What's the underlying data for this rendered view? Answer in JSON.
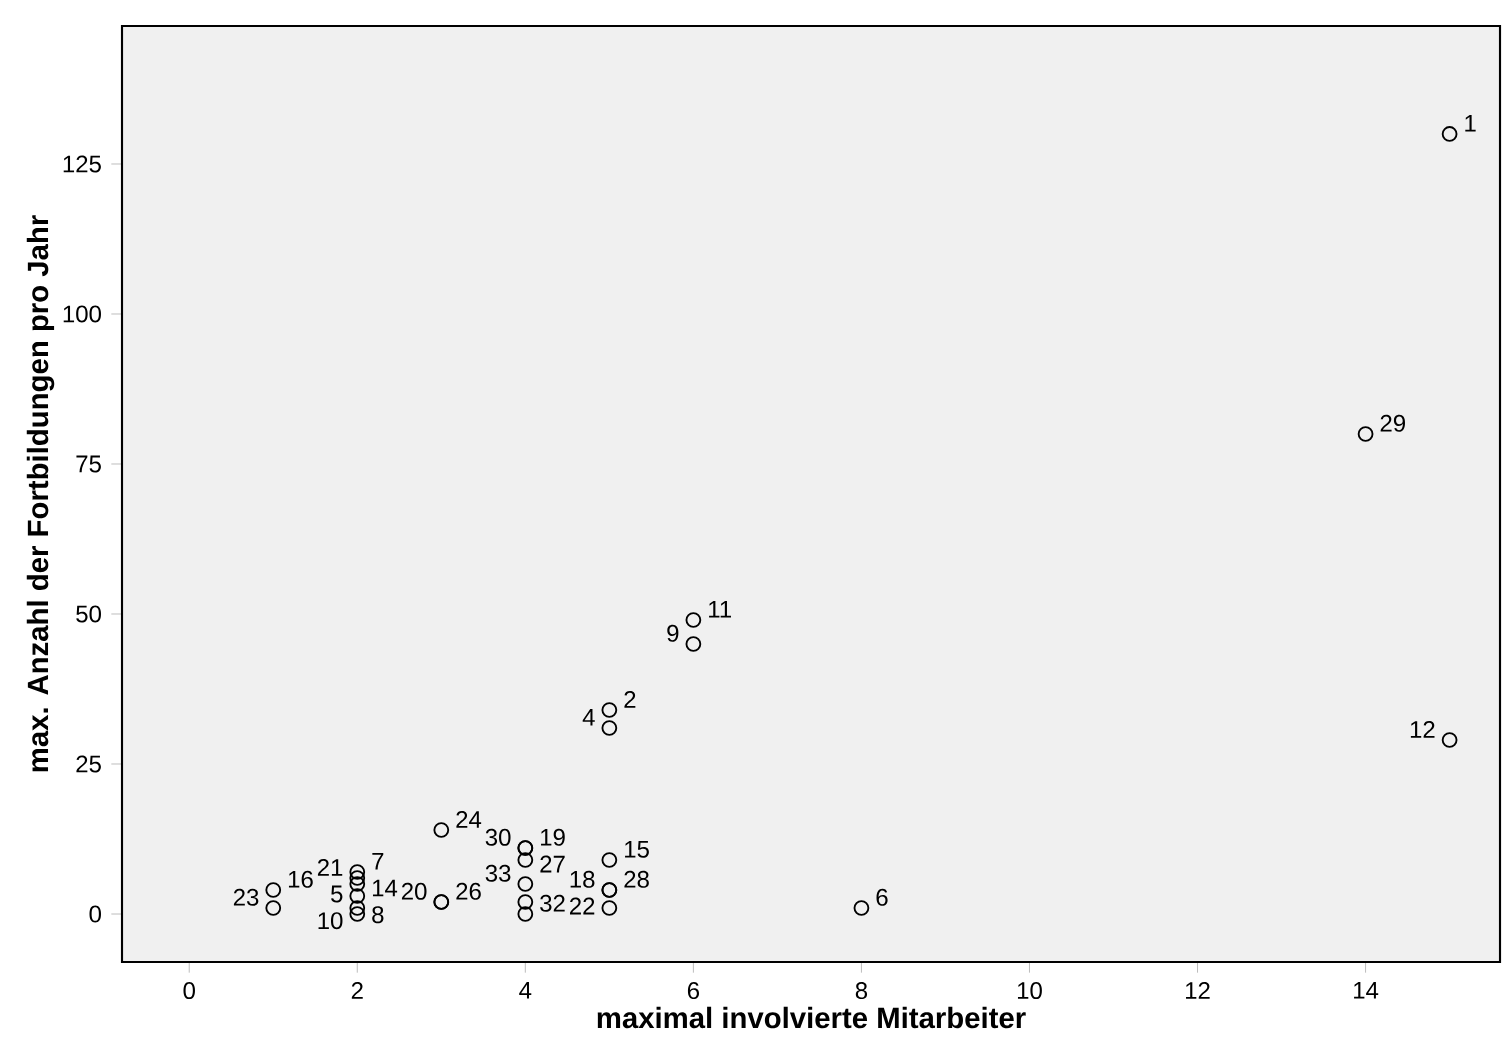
{
  "chart_data": {
    "type": "scatter",
    "xlabel": "maximal involvierte Mitarbeiter",
    "ylabel": "max. Anzahl der Fortbildungen pro Jahr",
    "series": [
      {
        "color": "#000000",
        "x": [
          15,
          5,
          5,
          2,
          8,
          2,
          2,
          6,
          2,
          6,
          15,
          2,
          5,
          1,
          5,
          4,
          3,
          2,
          5,
          1,
          3,
          4,
          4,
          3,
          14,
          4,
          4,
          4,
          5
        ],
        "values": [
          130,
          31,
          34,
          3,
          1,
          7,
          1,
          45,
          0,
          49,
          29,
          5,
          9,
          4,
          4,
          11,
          2,
          6,
          1,
          1,
          14,
          2,
          9,
          2,
          80,
          11,
          0,
          5,
          4
        ]
      }
    ],
    "annotations": [
      {
        "text": "1",
        "x": 15,
        "y": 130
      },
      {
        "text": "2",
        "x": 5,
        "y": 34
      },
      {
        "text": "4",
        "x": 5,
        "y": 31
      },
      {
        "text": "5",
        "x": 2,
        "y": 3
      },
      {
        "text": "6",
        "x": 8,
        "y": 1
      },
      {
        "text": "7",
        "x": 2,
        "y": 7
      },
      {
        "text": "8",
        "x": 2,
        "y": 1
      },
      {
        "text": "9",
        "x": 6,
        "y": 45
      },
      {
        "text": "10",
        "x": 2,
        "y": 0
      },
      {
        "text": "11",
        "x": 6,
        "y": 49
      },
      {
        "text": "12",
        "x": 15,
        "y": 29
      },
      {
        "text": "14",
        "x": 2,
        "y": 5
      },
      {
        "text": "15",
        "x": 5,
        "y": 9
      },
      {
        "text": "16",
        "x": 1,
        "y": 4
      },
      {
        "text": "18",
        "x": 5,
        "y": 4
      },
      {
        "text": "19",
        "x": 4,
        "y": 11
      },
      {
        "text": "20",
        "x": 3,
        "y": 2
      },
      {
        "text": "21",
        "x": 2,
        "y": 6
      },
      {
        "text": "22",
        "x": 5,
        "y": 1
      },
      {
        "text": "23",
        "x": 1,
        "y": 1
      },
      {
        "text": "24",
        "x": 3,
        "y": 14
      },
      {
        "text": "26",
        "x": 3,
        "y": 2
      },
      {
        "text": "27",
        "x": 4,
        "y": 9
      },
      {
        "text": "28",
        "x": 5,
        "y": 4
      },
      {
        "text": "29",
        "x": 14,
        "y": 80
      },
      {
        "text": "30",
        "x": 4,
        "y": 11
      },
      {
        "text": "32",
        "x": 4,
        "y": 0
      },
      {
        "text": "33",
        "x": 4,
        "y": 5
      }
    ],
    "xlim": [
      -0.8,
      15.6
    ],
    "ylim": [
      -8,
      148
    ],
    "xticks": [
      0,
      2,
      4,
      6,
      8,
      10,
      12,
      14
    ],
    "yticks": [
      0,
      25,
      50,
      75,
      100,
      125
    ],
    "marker": "circle",
    "grid": false
  }
}
